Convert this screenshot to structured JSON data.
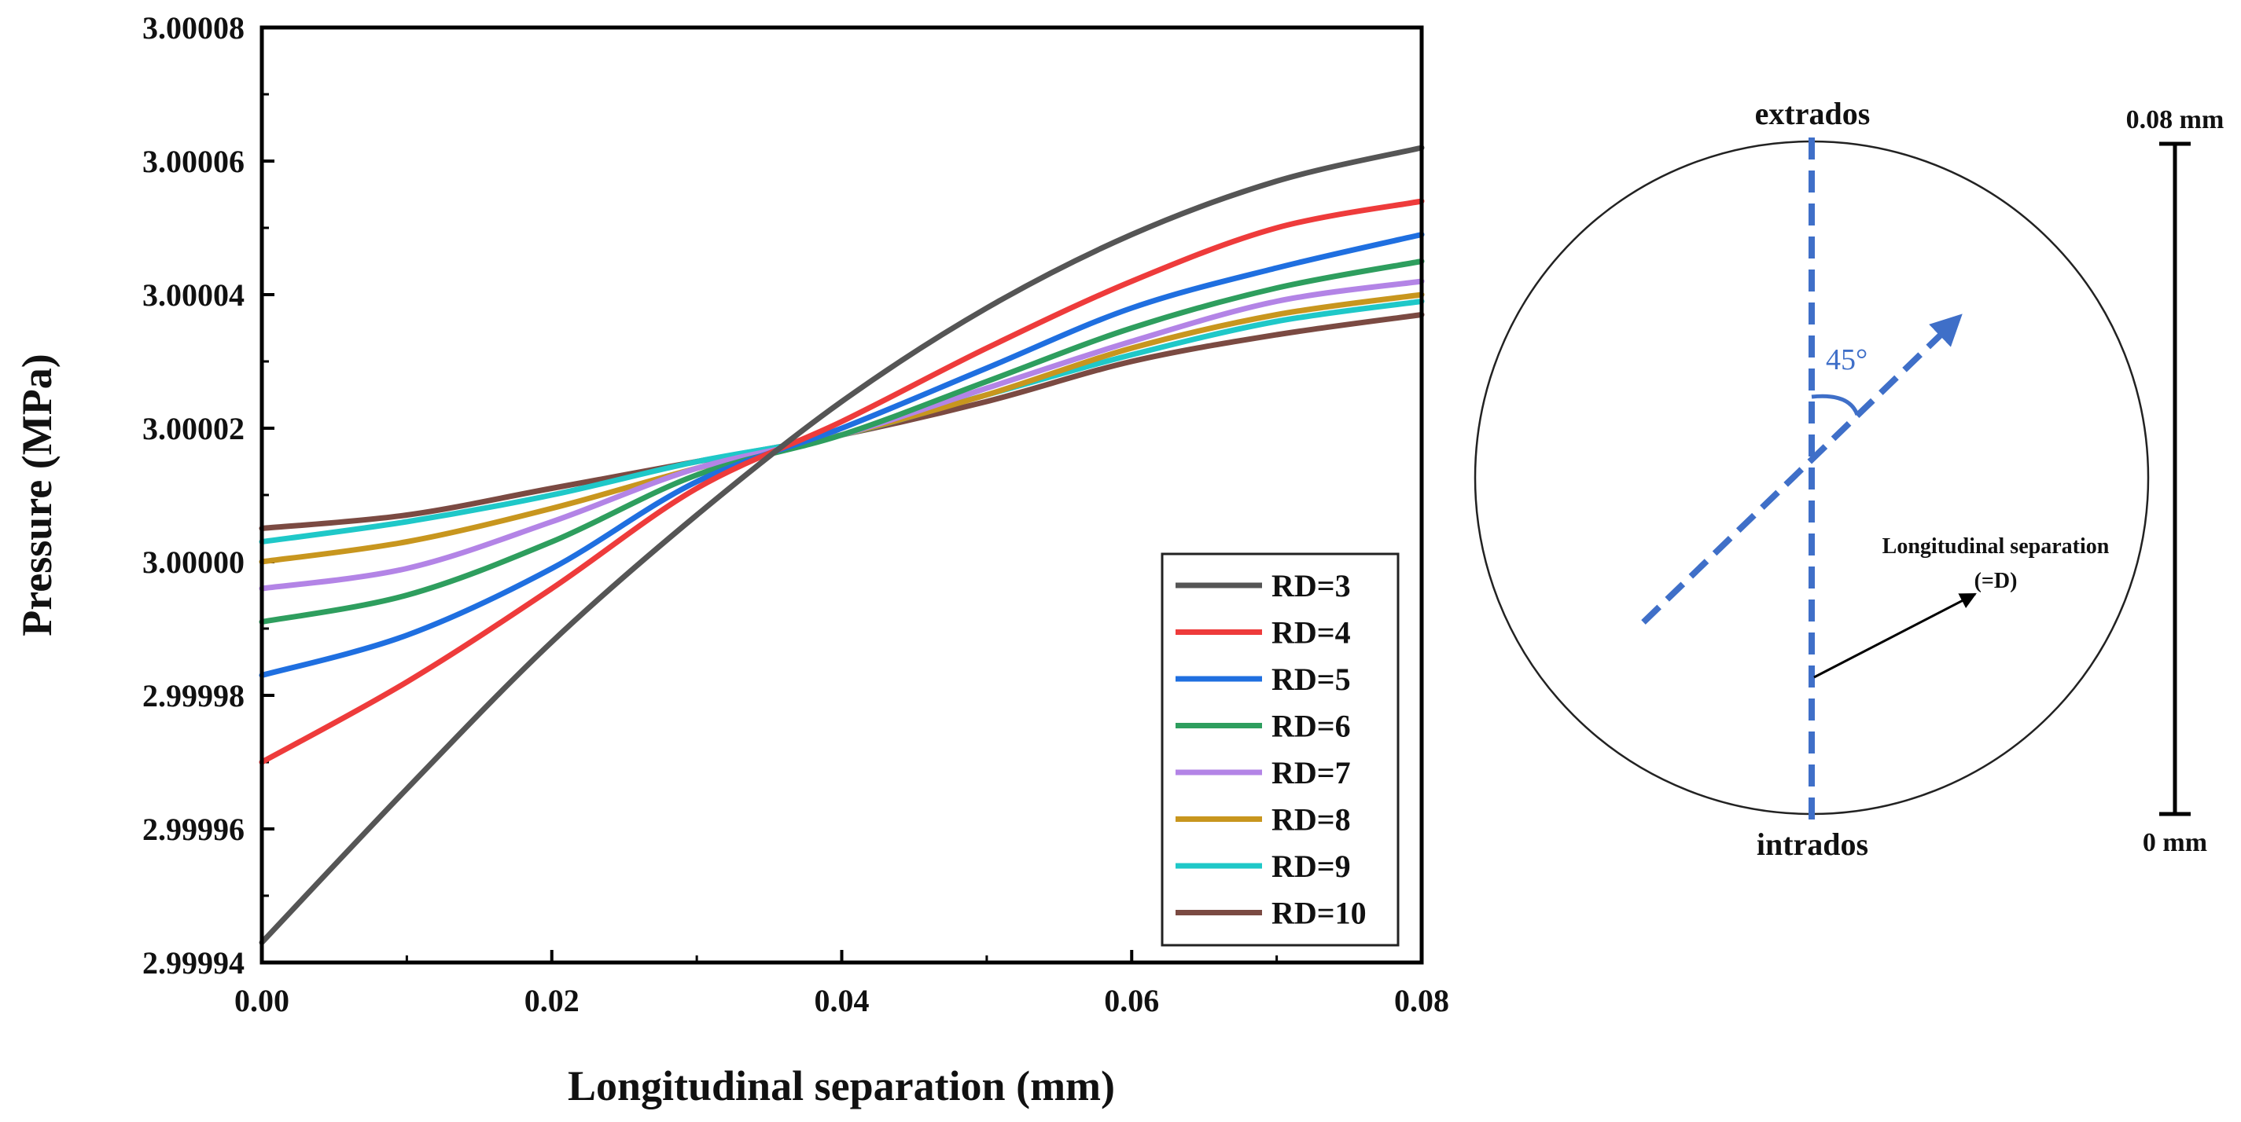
{
  "chart_data": {
    "type": "line",
    "xlabel": "Longitudinal separation (mm)",
    "ylabel": "Pressure (MPa)",
    "xlim": [
      0,
      0.08
    ],
    "ylim": [
      2.99994,
      3.00008
    ],
    "x_ticks": [
      0,
      0.02,
      0.04,
      0.06,
      0.08
    ],
    "x_tick_labels": [
      "0.00",
      "0.02",
      "0.04",
      "0.06",
      "0.08"
    ],
    "y_ticks": [
      2.99994,
      2.99996,
      2.99998,
      3.0,
      3.00002,
      3.00004,
      3.00006,
      3.00008
    ],
    "y_tick_labels": [
      "2.99994",
      "2.99996",
      "2.99998",
      "3.00000",
      "3.00002",
      "3.00004",
      "3.00006",
      "3.00008"
    ],
    "legend_position": "bottom-right",
    "x": [
      0,
      0.01,
      0.02,
      0.03,
      0.04,
      0.05,
      0.06,
      0.07,
      0.08
    ],
    "series": [
      {
        "name": "RD=3",
        "color": "#555555",
        "values": [
          2.999943,
          2.999966,
          2.999988,
          3.000007,
          3.000024,
          3.000038,
          3.000049,
          3.000057,
          3.000062
        ]
      },
      {
        "name": "RD=4",
        "color": "#ee3b3b",
        "values": [
          2.99997,
          2.999982,
          2.999996,
          3.000011,
          3.000021,
          3.000032,
          3.000042,
          3.00005,
          3.000054
        ]
      },
      {
        "name": "RD=5",
        "color": "#1f6fe0",
        "values": [
          2.999983,
          2.999989,
          2.999999,
          3.000012,
          3.00002,
          3.000029,
          3.000038,
          3.000044,
          3.000049
        ]
      },
      {
        "name": "RD=6",
        "color": "#2e9e5e",
        "values": [
          2.999991,
          2.999995,
          3.000003,
          3.000013,
          3.000019,
          3.000027,
          3.000035,
          3.000041,
          3.000045
        ]
      },
      {
        "name": "RD=7",
        "color": "#b384e6",
        "values": [
          2.999996,
          2.999999,
          3.000006,
          3.000014,
          3.000019,
          3.000026,
          3.000033,
          3.000039,
          3.000042
        ]
      },
      {
        "name": "RD=8",
        "color": "#c8961e",
        "values": [
          3.0,
          3.000003,
          3.000008,
          3.000014,
          3.000019,
          3.000025,
          3.000032,
          3.000037,
          3.00004
        ]
      },
      {
        "name": "RD=9",
        "color": "#1fc8c8",
        "values": [
          3.000003,
          3.000006,
          3.00001,
          3.000015,
          3.000019,
          3.000025,
          3.000031,
          3.000036,
          3.000039
        ]
      },
      {
        "name": "RD=10",
        "color": "#7b4a42",
        "values": [
          3.000005,
          3.000007,
          3.000011,
          3.000015,
          3.000019,
          3.000024,
          3.00003,
          3.000034,
          3.000037
        ]
      }
    ]
  },
  "diagram": {
    "top_label": "extrados",
    "bottom_label": "intrados",
    "angle_label": "45°",
    "annotation_line1": "Longitudinal separation",
    "annotation_line2": "(=D)",
    "scale_top": "0.08 mm",
    "scale_bottom": "0 mm",
    "dash_color": "#3f6fc8",
    "circle_color": "#222222"
  }
}
